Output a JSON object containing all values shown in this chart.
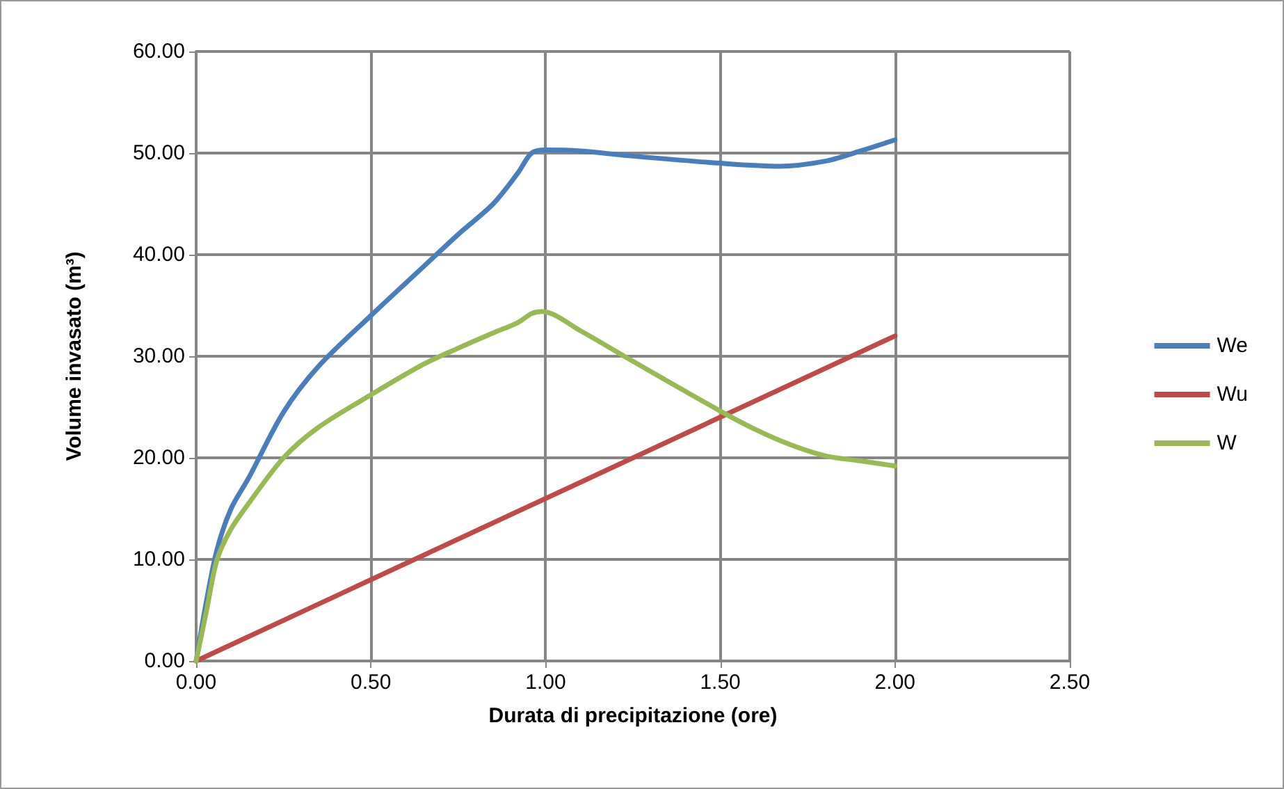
{
  "chart_data": {
    "type": "line",
    "xlabel": "Durata di precipitazione (ore)",
    "ylabel": "Volume invasato (m³)",
    "xlim": [
      0,
      2.5
    ],
    "ylim": [
      0,
      60
    ],
    "xticks": [
      {
        "value": 0,
        "label": "0.00"
      },
      {
        "value": 0.5,
        "label": "0.50"
      },
      {
        "value": 1,
        "label": "1.00"
      },
      {
        "value": 1.5,
        "label": "1.50"
      },
      {
        "value": 2,
        "label": "2.00"
      },
      {
        "value": 2.5,
        "label": "2.50"
      }
    ],
    "yticks": [
      {
        "value": 0,
        "label": "0.00"
      },
      {
        "value": 10,
        "label": "10.00"
      },
      {
        "value": 20,
        "label": "20.00"
      },
      {
        "value": 30,
        "label": "30.00"
      },
      {
        "value": 40,
        "label": "40.00"
      },
      {
        "value": 50,
        "label": "50.00"
      },
      {
        "value": 60,
        "label": "60.00"
      }
    ],
    "grid": true,
    "legend": "right",
    "marker": "none",
    "line_style": "solid",
    "series": [
      {
        "name": "We",
        "color": "#4a7ebb",
        "x": [
          0,
          0.03,
          0.06,
          0.1,
          0.15,
          0.25,
          0.35,
          0.5,
          0.65,
          0.75,
          0.85,
          0.92,
          0.96,
          1,
          1.1,
          1.25,
          1.5,
          1.67,
          1.8,
          1.9,
          2
        ],
        "values": [
          0,
          6,
          11,
          15,
          18,
          24.5,
          29,
          34,
          38.8,
          42,
          45,
          48,
          50,
          50.3,
          50.2,
          49.7,
          49,
          48.7,
          49.2,
          50.2,
          51.3
        ]
      },
      {
        "name": "Wu",
        "color": "#be4b48",
        "x": [
          0,
          2
        ],
        "values": [
          0,
          32
        ]
      },
      {
        "name": "W",
        "color": "#98b954",
        "x": [
          0,
          0.03,
          0.06,
          0.1,
          0.15,
          0.25,
          0.35,
          0.5,
          0.65,
          0.75,
          0.85,
          0.92,
          0.96,
          0.99,
          1.1,
          1.25,
          1.5,
          1.6,
          1.7,
          1.8,
          1.9,
          2
        ],
        "values": [
          0,
          5,
          10,
          13,
          15.5,
          20,
          23,
          26.2,
          29.2,
          30.8,
          32.3,
          33.3,
          34.2,
          34.4,
          32.5,
          29.5,
          24.6,
          22.8,
          21.3,
          20.2,
          19.7,
          19.2
        ]
      }
    ]
  }
}
